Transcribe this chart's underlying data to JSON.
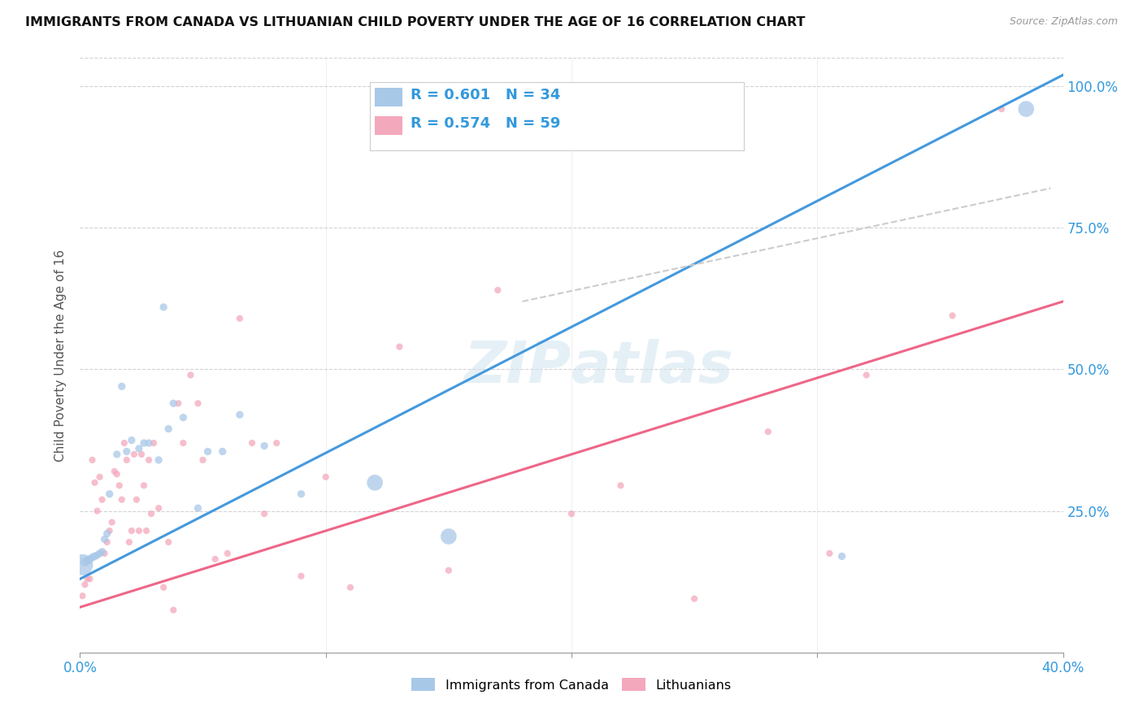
{
  "title": "IMMIGRANTS FROM CANADA VS LITHUANIAN CHILD POVERTY UNDER THE AGE OF 16 CORRELATION CHART",
  "source": "Source: ZipAtlas.com",
  "ylabel": "Child Poverty Under the Age of 16",
  "watermark": "ZIPatlas",
  "legend_label1": "Immigrants from Canada",
  "legend_label2": "Lithuanians",
  "legend_r1": "R = 0.601",
  "legend_n1": "N = 34",
  "legend_r2": "R = 0.574",
  "legend_n2": "N = 59",
  "color_blue": "#a8c8e8",
  "color_pink": "#f4a8bc",
  "color_blue_line": "#4499dd",
  "color_pink_line": "#ee6688",
  "color_dashed": "#cccccc",
  "blue_scatter_x": [
    0.001,
    0.002,
    0.003,
    0.004,
    0.005,
    0.006,
    0.007,
    0.008,
    0.009,
    0.01,
    0.011,
    0.012,
    0.015,
    0.017,
    0.019,
    0.021,
    0.024,
    0.026,
    0.028,
    0.032,
    0.034,
    0.036,
    0.038,
    0.042,
    0.048,
    0.052,
    0.058,
    0.065,
    0.075,
    0.09,
    0.12,
    0.15,
    0.31,
    0.385
  ],
  "blue_scatter_y": [
    0.155,
    0.16,
    0.162,
    0.165,
    0.168,
    0.17,
    0.172,
    0.175,
    0.178,
    0.2,
    0.21,
    0.28,
    0.35,
    0.47,
    0.355,
    0.375,
    0.36,
    0.37,
    0.37,
    0.34,
    0.61,
    0.395,
    0.44,
    0.415,
    0.255,
    0.355,
    0.355,
    0.42,
    0.365,
    0.28,
    0.3,
    0.205,
    0.17,
    0.96
  ],
  "blue_marker_sizes": [
    350,
    60,
    55,
    50,
    50,
    50,
    45,
    45,
    45,
    45,
    45,
    45,
    45,
    45,
    45,
    45,
    45,
    45,
    45,
    45,
    45,
    45,
    45,
    45,
    45,
    45,
    45,
    45,
    45,
    45,
    200,
    200,
    45,
    200
  ],
  "pink_scatter_x": [
    0.001,
    0.002,
    0.003,
    0.004,
    0.005,
    0.006,
    0.007,
    0.008,
    0.009,
    0.01,
    0.011,
    0.012,
    0.013,
    0.014,
    0.015,
    0.016,
    0.017,
    0.018,
    0.019,
    0.02,
    0.021,
    0.022,
    0.023,
    0.024,
    0.025,
    0.026,
    0.027,
    0.028,
    0.029,
    0.03,
    0.032,
    0.034,
    0.036,
    0.038,
    0.04,
    0.042,
    0.045,
    0.048,
    0.05,
    0.055,
    0.06,
    0.065,
    0.07,
    0.075,
    0.08,
    0.09,
    0.1,
    0.11,
    0.13,
    0.15,
    0.17,
    0.2,
    0.22,
    0.25,
    0.28,
    0.32,
    0.355,
    0.375,
    0.305
  ],
  "pink_scatter_y": [
    0.1,
    0.12,
    0.13,
    0.13,
    0.34,
    0.3,
    0.25,
    0.31,
    0.27,
    0.175,
    0.195,
    0.215,
    0.23,
    0.32,
    0.315,
    0.295,
    0.27,
    0.37,
    0.34,
    0.195,
    0.215,
    0.35,
    0.27,
    0.215,
    0.35,
    0.295,
    0.215,
    0.34,
    0.245,
    0.37,
    0.255,
    0.115,
    0.195,
    0.075,
    0.44,
    0.37,
    0.49,
    0.44,
    0.34,
    0.165,
    0.175,
    0.59,
    0.37,
    0.245,
    0.37,
    0.135,
    0.31,
    0.115,
    0.54,
    0.145,
    0.64,
    0.245,
    0.295,
    0.095,
    0.39,
    0.49,
    0.595,
    0.96,
    0.175
  ],
  "pink_marker_sizes": [
    35,
    35,
    35,
    35,
    35,
    35,
    35,
    35,
    35,
    35,
    35,
    35,
    35,
    35,
    35,
    35,
    35,
    35,
    35,
    35,
    35,
    35,
    35,
    35,
    35,
    35,
    35,
    35,
    35,
    35,
    35,
    35,
    35,
    35,
    35,
    35,
    35,
    35,
    35,
    35,
    35,
    35,
    35,
    35,
    35,
    35,
    35,
    35,
    35,
    35,
    35,
    35,
    35,
    35,
    35,
    35,
    35,
    35,
    35
  ],
  "blue_line_x": [
    0.0,
    0.4
  ],
  "blue_line_y": [
    0.13,
    1.02
  ],
  "pink_line_x": [
    0.0,
    0.4
  ],
  "pink_line_y": [
    0.08,
    0.62
  ],
  "dashed_line_x": [
    0.18,
    0.395
  ],
  "dashed_line_y": [
    0.62,
    0.82
  ],
  "xlim": [
    0.0,
    0.4
  ],
  "ylim": [
    0.0,
    1.05
  ],
  "xticks": [
    0.0,
    0.1,
    0.2,
    0.3,
    0.4
  ],
  "xtick_labels": [
    "0.0%",
    "",
    "",
    "",
    "40.0%"
  ],
  "yticks": [
    0.0,
    0.25,
    0.5,
    0.75,
    1.0
  ],
  "ytick_labels": [
    "",
    "25.0%",
    "50.0%",
    "75.0%",
    "100.0%"
  ]
}
